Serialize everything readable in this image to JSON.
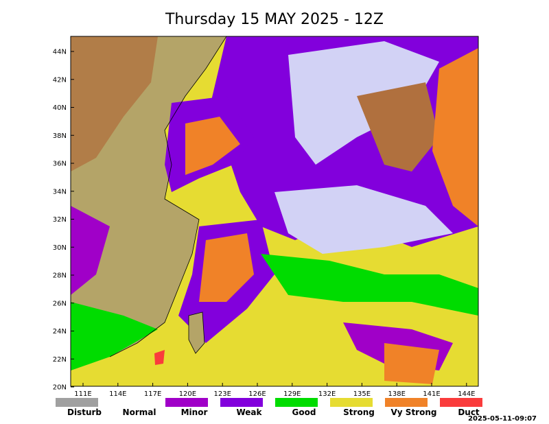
{
  "title": "Thursday 15 MAY 2025 - 12Z",
  "lat_labels": [
    "44N",
    "42N",
    "40N",
    "38N",
    "36N",
    "34N",
    "32N",
    "30N",
    "28N",
    "26N",
    "24N",
    "22N",
    "20N"
  ],
  "lon_labels": [
    "111E",
    "114E",
    "117E",
    "120E",
    "123E",
    "126E",
    "129E",
    "132E",
    "135E",
    "138E",
    "141E",
    "144E"
  ],
  "legend": [
    {
      "label": "Disturb",
      "color": "#a0a0a0"
    },
    {
      "label": "Normal",
      "color": "#ffffff"
    },
    {
      "label": "Minor",
      "color": "#a000c8"
    },
    {
      "label": "Weak",
      "color": "#8200dc"
    },
    {
      "label": "Good",
      "color": "#00dc00"
    },
    {
      "label": "Strong",
      "color": "#e6dc32"
    },
    {
      "label": "Vy Strong",
      "color": "#f08228"
    },
    {
      "label": "Duct",
      "color": "#fa3c3c"
    }
  ],
  "timestamp": "2025-05-11-09:07"
}
